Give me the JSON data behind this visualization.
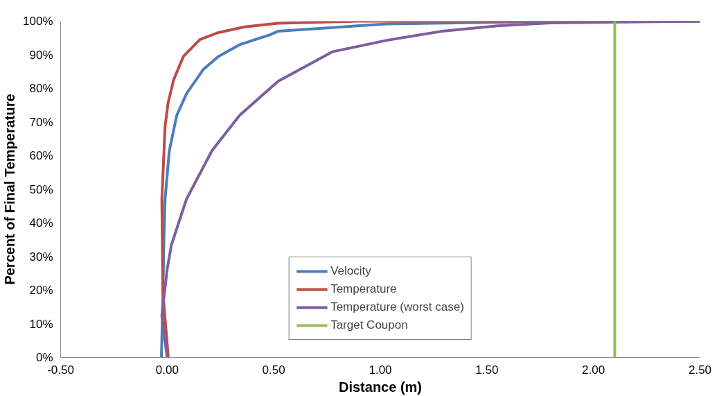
{
  "chart_data": {
    "type": "line",
    "xlabel": "Distance (m)",
    "ylabel": "Percent of Final Temperature",
    "xlim": [
      -0.5,
      2.5
    ],
    "ylim": [
      0,
      100
    ],
    "xticks": [
      {
        "value": -0.5,
        "label": "-0.50"
      },
      {
        "value": 0,
        "label": "0.00"
      },
      {
        "value": 0.5,
        "label": "0.50"
      },
      {
        "value": 1,
        "label": "1.00"
      },
      {
        "value": 1.5,
        "label": "1.50"
      },
      {
        "value": 2,
        "label": "2.00"
      },
      {
        "value": 2.5,
        "label": "2.50"
      }
    ],
    "yticks": [
      {
        "value": 0,
        "label": "0%"
      },
      {
        "value": 10,
        "label": "10%"
      },
      {
        "value": 20,
        "label": "20%"
      },
      {
        "value": 30,
        "label": "30%"
      },
      {
        "value": 40,
        "label": "40%"
      },
      {
        "value": 50,
        "label": "50%"
      },
      {
        "value": 60,
        "label": "60%"
      },
      {
        "value": 70,
        "label": "70%"
      },
      {
        "value": 80,
        "label": "80%"
      },
      {
        "value": 90,
        "label": "90%"
      },
      {
        "value": 100,
        "label": "100%"
      }
    ],
    "grid": false,
    "legend": "bottom",
    "marker": "none",
    "line_style": "solid",
    "series": [
      {
        "name": "Velocity",
        "color": "#4a7ebb",
        "x": [
          -0.027,
          -0.02,
          -0.016,
          -0.01,
          0.01,
          0.045,
          0.092,
          0.169,
          0.24,
          0.34,
          0.48,
          0.52,
          1.03,
          1.68,
          2.5
        ],
        "values": [
          0,
          19,
          33.5,
          47,
          61.5,
          72,
          78.6,
          85.6,
          89.5,
          93,
          95.9,
          97,
          99.2,
          99.8,
          100
        ]
      },
      {
        "name": "Temperature",
        "color": "#be4b48",
        "x": [
          0.005,
          -0.02,
          -0.025,
          -0.01,
          0.004,
          0.03,
          0.076,
          0.153,
          0.24,
          0.364,
          0.52,
          0.9,
          2.5
        ],
        "values": [
          0,
          19.4,
          47,
          68.6,
          75.6,
          82.5,
          89.5,
          94.5,
          96.6,
          98.3,
          99.4,
          100,
          100
        ]
      },
      {
        "name": "Temperature (worst case)",
        "color": "#7d5fa0",
        "x": [
          0.0,
          -0.025,
          0.0,
          0.02,
          0.09,
          0.21,
          0.34,
          0.52,
          0.775,
          1.03,
          1.29,
          1.55,
          1.8,
          2.5
        ],
        "values": [
          0,
          12.4,
          26.3,
          33.5,
          47,
          61.5,
          72,
          82.1,
          90.9,
          94.3,
          97,
          98.6,
          99.5,
          100
        ]
      },
      {
        "name": "Target Coupon",
        "color": "#9bbb59",
        "x": [
          2.1,
          2.1
        ],
        "values": [
          0,
          100
        ]
      }
    ]
  }
}
